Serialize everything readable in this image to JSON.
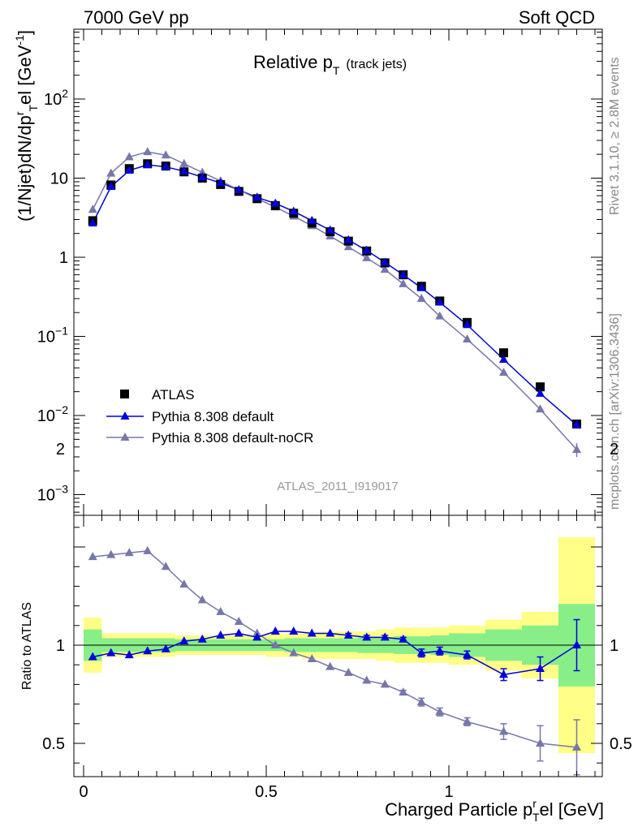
{
  "header": {
    "left": "7000 GeV pp",
    "right": "Soft QCD"
  },
  "side_labels": {
    "rivet": "Rivet 3.1.10, ≥ 2.8M events",
    "mcplots": "mcplots.cern.ch [arXiv:1306.3436]"
  },
  "chart_data": [
    {
      "type": "scatter",
      "panel": "main",
      "title": "Relative p_T (track jets)",
      "title_main": "Relative p",
      "title_sub": "T",
      "title_note": "(track jets)",
      "ylabel": "(1/Njet)dN/dp^r_T el [GeV^-1]",
      "analysis_tag": "ATLAS_2011_I919017",
      "xlim": [
        -0.02,
        1.41
      ],
      "ylim": [
        0.0005,
        1000
      ],
      "yscale": "log",
      "ytick_labels": [
        "10^-3",
        "10^-2",
        "10^-1",
        "1",
        "10",
        "10^2"
      ],
      "legend_position": "lower-left",
      "colors": {
        "atlas": "#000000",
        "default": "#0000dd",
        "nocr": "#7777aa"
      },
      "series": [
        {
          "name": "ATLAS",
          "x": [
            0.025,
            0.075,
            0.125,
            0.175,
            0.225,
            0.275,
            0.325,
            0.375,
            0.425,
            0.475,
            0.525,
            0.575,
            0.625,
            0.675,
            0.725,
            0.775,
            0.825,
            0.875,
            0.925,
            0.975,
            1.05,
            1.15,
            1.25,
            1.35
          ],
          "y": [
            2.9,
            8.2,
            13.2,
            15.2,
            14.2,
            12.0,
            10.0,
            8.3,
            6.8,
            5.5,
            4.5,
            3.6,
            2.7,
            2.1,
            1.6,
            1.2,
            0.85,
            0.6,
            0.43,
            0.28,
            0.15,
            0.062,
            0.023,
            0.0078
          ]
        },
        {
          "name": "Pythia 8.308 default",
          "x": [
            0.025,
            0.075,
            0.125,
            0.175,
            0.225,
            0.275,
            0.325,
            0.375,
            0.425,
            0.475,
            0.525,
            0.575,
            0.625,
            0.675,
            0.725,
            0.775,
            0.825,
            0.875,
            0.925,
            0.975,
            1.05,
            1.15,
            1.25,
            1.35
          ],
          "y": [
            2.7,
            7.8,
            12.5,
            14.7,
            13.9,
            12.2,
            10.3,
            8.7,
            7.1,
            5.7,
            4.8,
            3.8,
            2.9,
            2.2,
            1.65,
            1.22,
            0.86,
            0.6,
            0.41,
            0.27,
            0.14,
            0.051,
            0.019,
            0.0076
          ]
        },
        {
          "name": "Pythia 8.308 default-noCR",
          "x": [
            0.025,
            0.075,
            0.125,
            0.175,
            0.225,
            0.275,
            0.325,
            0.375,
            0.425,
            0.475,
            0.525,
            0.575,
            0.625,
            0.675,
            0.725,
            0.775,
            0.825,
            0.875,
            0.925,
            0.975,
            1.05,
            1.15,
            1.25,
            1.35
          ],
          "y": [
            4.0,
            11.5,
            18.5,
            21.5,
            19.5,
            15.2,
            11.8,
            9.2,
            7.1,
            5.5,
            4.3,
            3.3,
            2.5,
            1.85,
            1.35,
            0.98,
            0.7,
            0.46,
            0.3,
            0.18,
            0.092,
            0.035,
            0.012,
            0.0037
          ]
        }
      ]
    },
    {
      "type": "scatter",
      "panel": "ratio",
      "xlabel": "Charged Particle p^r_T el [GeV]",
      "xlabel_main": "Charged Particle p",
      "xlabel_sup": "r",
      "xlabel_sub": "T",
      "xlabel_tail": "el [GeV]",
      "ylabel": "Ratio to ATLAS",
      "xlim": [
        -0.02,
        1.41
      ],
      "ylim": [
        0.35,
        2.32
      ],
      "xticks": [
        0,
        0.5,
        1
      ],
      "xtick_labels": [
        "0",
        "0.5",
        "1"
      ],
      "yticks": [
        0.5,
        1,
        2
      ],
      "ytick_labels": [
        "0.5",
        "1",
        "2"
      ],
      "bands": {
        "edges": [
          0,
          0.05,
          0.1,
          0.15,
          0.2,
          0.25,
          0.3,
          0.35,
          0.4,
          0.45,
          0.5,
          0.55,
          0.6,
          0.65,
          0.7,
          0.75,
          0.8,
          0.85,
          0.9,
          0.95,
          1.0,
          1.1,
          1.2,
          1.3,
          1.4
        ],
        "yellow_half": [
          0.14,
          0.06,
          0.06,
          0.06,
          0.06,
          0.05,
          0.05,
          0.05,
          0.05,
          0.05,
          0.06,
          0.06,
          0.07,
          0.07,
          0.07,
          0.07,
          0.08,
          0.09,
          0.09,
          0.09,
          0.1,
          0.13,
          0.17,
          0.55
        ],
        "green_half": [
          0.08,
          0.035,
          0.035,
          0.035,
          0.035,
          0.03,
          0.03,
          0.03,
          0.03,
          0.03,
          0.03,
          0.035,
          0.035,
          0.035,
          0.035,
          0.04,
          0.04,
          0.045,
          0.045,
          0.05,
          0.06,
          0.08,
          0.1,
          0.21
        ]
      },
      "series": [
        {
          "name": "Pythia 8.308 default",
          "x": [
            0.025,
            0.075,
            0.125,
            0.175,
            0.225,
            0.275,
            0.325,
            0.375,
            0.425,
            0.475,
            0.525,
            0.575,
            0.625,
            0.675,
            0.725,
            0.775,
            0.825,
            0.875,
            0.925,
            0.975,
            1.05,
            1.15,
            1.25,
            1.35
          ],
          "y": [
            0.94,
            0.96,
            0.95,
            0.97,
            0.98,
            1.02,
            1.03,
            1.05,
            1.06,
            1.04,
            1.07,
            1.07,
            1.06,
            1.06,
            1.05,
            1.04,
            1.04,
            1.03,
            0.96,
            0.97,
            0.95,
            0.85,
            0.88,
            1.0
          ],
          "err": [
            0,
            0,
            0,
            0,
            0,
            0,
            0,
            0,
            0,
            0,
            0,
            0,
            0,
            0,
            0.01,
            0.01,
            0.01,
            0.01,
            0.02,
            0.02,
            0.02,
            0.03,
            0.06,
            0.13
          ]
        },
        {
          "name": "Pythia 8.308 default-noCR",
          "x": [
            0.025,
            0.075,
            0.125,
            0.175,
            0.225,
            0.275,
            0.325,
            0.375,
            0.425,
            0.475,
            0.525,
            0.575,
            0.625,
            0.675,
            0.725,
            0.775,
            0.825,
            0.875,
            0.925,
            0.975,
            1.05,
            1.15,
            1.25,
            1.35
          ],
          "y": [
            1.45,
            1.46,
            1.47,
            1.48,
            1.4,
            1.31,
            1.23,
            1.17,
            1.12,
            1.06,
            1.0,
            0.96,
            0.93,
            0.89,
            0.86,
            0.82,
            0.8,
            0.76,
            0.71,
            0.66,
            0.61,
            0.56,
            0.5,
            0.48
          ],
          "err": [
            0,
            0,
            0,
            0,
            0,
            0,
            0,
            0,
            0,
            0,
            0,
            0,
            0,
            0,
            0,
            0,
            0,
            0.01,
            0.02,
            0.02,
            0.02,
            0.04,
            0.09,
            0.14
          ]
        }
      ]
    }
  ]
}
